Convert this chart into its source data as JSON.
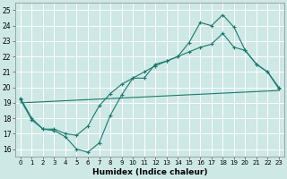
{
  "xlabel": "Humidex (Indice chaleur)",
  "background_color": "#cde8e5",
  "grid_color": "#ffffff",
  "line_color": "#1a7a6e",
  "xlim": [
    -0.5,
    23.5
  ],
  "ylim": [
    15.5,
    25.5
  ],
  "xticks": [
    0,
    1,
    2,
    3,
    4,
    5,
    6,
    7,
    8,
    9,
    10,
    11,
    12,
    13,
    14,
    15,
    16,
    17,
    18,
    19,
    20,
    21,
    22,
    23
  ],
  "yticks": [
    16,
    17,
    18,
    19,
    20,
    21,
    22,
    23,
    24,
    25
  ],
  "line1_x": [
    0,
    1,
    2,
    3,
    4,
    5,
    6,
    7,
    8,
    9,
    10,
    11,
    12,
    13,
    14,
    15,
    16,
    17,
    18,
    19,
    20,
    21,
    22,
    23
  ],
  "line1_y": [
    19.3,
    18.0,
    17.3,
    17.2,
    16.8,
    16.0,
    15.8,
    16.4,
    18.2,
    19.5,
    20.6,
    20.6,
    21.5,
    21.7,
    22.0,
    22.9,
    24.2,
    24.0,
    24.7,
    23.9,
    22.4,
    21.5,
    21.0,
    20.0
  ],
  "line2_x": [
    0,
    1,
    2,
    3,
    4,
    5,
    6,
    7,
    8,
    9,
    10,
    11,
    12,
    13,
    14,
    15,
    16,
    17,
    18,
    19,
    20,
    21,
    22,
    23
  ],
  "line2_y": [
    19.2,
    17.9,
    17.3,
    17.3,
    17.0,
    16.9,
    17.5,
    18.8,
    19.6,
    20.2,
    20.6,
    21.0,
    21.4,
    21.7,
    22.0,
    22.3,
    22.6,
    22.8,
    23.5,
    22.6,
    22.4,
    21.5,
    21.0,
    19.9
  ],
  "line3_x": [
    0,
    23
  ],
  "line3_y": [
    19.0,
    19.8
  ]
}
